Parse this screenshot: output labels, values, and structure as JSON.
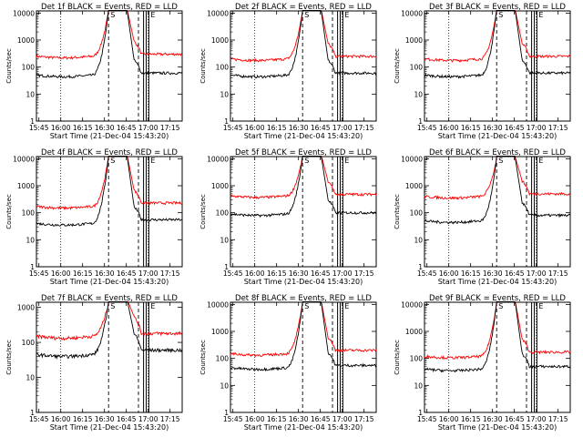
{
  "chart_data": [
    {
      "type": "line",
      "title": "Det 1f BLACK = Events, RED = LLD",
      "xlabel": "Start Time (21-Dec-04 15:43:20)",
      "ylabel": "Counts/sec",
      "x_ticks": [
        "15:45",
        "16:00",
        "16:15",
        "16:30",
        "16:45",
        "17:00",
        "17:15"
      ],
      "y_ticks": [
        "1",
        "10",
        "100",
        "1000",
        "10000"
      ],
      "ylim": [
        1,
        12000
      ],
      "yscale": "log",
      "markers": [
        "S",
        "E"
      ],
      "series": [
        {
          "name": "LLD",
          "color": "#ff0000",
          "baseline": 250,
          "late": 300,
          "peak": 12000
        },
        {
          "name": "Events",
          "color": "#000000",
          "baseline": 50,
          "late": 60,
          "peak": 12000
        }
      ]
    },
    {
      "type": "line",
      "title": "Det 2f BLACK = Events, RED = LLD",
      "xlabel": "Start Time (21-Dec-04 15:43:20)",
      "ylabel": "Counts/sec",
      "x_ticks": [
        "15:45",
        "16:00",
        "16:15",
        "16:30",
        "16:45",
        "17:00",
        "17:15"
      ],
      "y_ticks": [
        "1",
        "10",
        "100",
        "1000",
        "10000"
      ],
      "ylim": [
        1,
        12000
      ],
      "yscale": "log",
      "markers": [
        "S",
        "E"
      ],
      "series": [
        {
          "name": "LLD",
          "color": "#ff0000",
          "baseline": 200,
          "late": 250,
          "peak": 12000
        },
        {
          "name": "Events",
          "color": "#000000",
          "baseline": 50,
          "late": 60,
          "peak": 12000
        }
      ]
    },
    {
      "type": "line",
      "title": "Det 3f BLACK = Events, RED = LLD",
      "xlabel": "Start Time (21-Dec-04 15:43:20)",
      "ylabel": "Counts/sec",
      "x_ticks": [
        "15:45",
        "16:00",
        "16:15",
        "16:30",
        "16:45",
        "17:00",
        "17:15"
      ],
      "y_ticks": [
        "1",
        "10",
        "100",
        "1000",
        "10000"
      ],
      "ylim": [
        1,
        12000
      ],
      "yscale": "log",
      "markers": [
        "S",
        "E"
      ],
      "series": [
        {
          "name": "LLD",
          "color": "#ff0000",
          "baseline": 200,
          "late": 250,
          "peak": 12000
        },
        {
          "name": "Events",
          "color": "#000000",
          "baseline": 50,
          "late": 60,
          "peak": 12000
        }
      ]
    },
    {
      "type": "line",
      "title": "Det 4f BLACK = Events, RED = LLD",
      "xlabel": "Start Time (21-Dec-04 15:43:20)",
      "ylabel": "Counts/sec",
      "x_ticks": [
        "15:45",
        "16:00",
        "16:15",
        "16:30",
        "16:45",
        "17:00",
        "17:15"
      ],
      "y_ticks": [
        "1",
        "10",
        "100",
        "1000",
        "10000"
      ],
      "ylim": [
        1,
        12000
      ],
      "yscale": "log",
      "markers": [
        "S",
        "E"
      ],
      "series": [
        {
          "name": "LLD",
          "color": "#ff0000",
          "baseline": 170,
          "late": 230,
          "peak": 12000
        },
        {
          "name": "Events",
          "color": "#000000",
          "baseline": 40,
          "late": 55,
          "peak": 12000
        }
      ]
    },
    {
      "type": "line",
      "title": "Det 5f BLACK = Events, RED = LLD",
      "xlabel": "Start Time (21-Dec-04 15:43:20)",
      "ylabel": "Counts/sec",
      "x_ticks": [
        "15:45",
        "16:00",
        "16:15",
        "16:30",
        "16:45",
        "17:00",
        "17:15"
      ],
      "y_ticks": [
        "1",
        "10",
        "100",
        "1000",
        "10000"
      ],
      "ylim": [
        1,
        12000
      ],
      "yscale": "log",
      "markers": [
        "S",
        "E"
      ],
      "series": [
        {
          "name": "LLD",
          "color": "#ff0000",
          "baseline": 420,
          "late": 480,
          "peak": 12000
        },
        {
          "name": "Events",
          "color": "#000000",
          "baseline": 90,
          "late": 100,
          "peak": 12000
        }
      ]
    },
    {
      "type": "line",
      "title": "Det 6f BLACK = Events, RED = LLD",
      "xlabel": "Start Time (21-Dec-04 15:43:20)",
      "ylabel": "Counts/sec",
      "x_ticks": [
        "15:45",
        "16:00",
        "16:15",
        "16:30",
        "16:45",
        "17:00",
        "17:15"
      ],
      "y_ticks": [
        "1",
        "10",
        "100",
        "1000",
        "10000"
      ],
      "ylim": [
        1,
        12000
      ],
      "yscale": "log",
      "markers": [
        "S",
        "E"
      ],
      "series": [
        {
          "name": "LLD",
          "color": "#ff0000",
          "baseline": 400,
          "late": 500,
          "peak": 10000
        },
        {
          "name": "Events",
          "color": "#000000",
          "baseline": 50,
          "late": 80,
          "peak": 10000
        }
      ]
    },
    {
      "type": "line",
      "title": "Det 7f BLACK = Events, RED = LLD",
      "xlabel": "Start Time (21-Dec-04 15:43:20)",
      "ylabel": "Counts/sec",
      "x_ticks": [
        "15:45",
        "16:00",
        "16:15",
        "16:30",
        "16:45",
        "17:00",
        "17:15"
      ],
      "y_ticks": [
        "1",
        "10",
        "100",
        "1000"
      ],
      "ylim": [
        1,
        1400
      ],
      "yscale": "log",
      "markers": [
        "S",
        "E"
      ],
      "series": [
        {
          "name": "LLD",
          "color": "#ff0000",
          "baseline": 150,
          "late": 180,
          "peak": 1400
        },
        {
          "name": "Events",
          "color": "#000000",
          "baseline": 45,
          "late": 60,
          "peak": 1400
        }
      ]
    },
    {
      "type": "line",
      "title": "Det 8f BLACK = Events, RED = LLD",
      "xlabel": "Start Time (21-Dec-04 15:43:20)",
      "ylabel": "Counts/sec",
      "x_ticks": [
        "15:45",
        "16:00",
        "16:15",
        "16:30",
        "16:45",
        "17:00",
        "17:15"
      ],
      "y_ticks": [
        "1",
        "10",
        "100",
        "1000",
        "10000"
      ],
      "ylim": [
        1,
        12000
      ],
      "yscale": "log",
      "markers": [
        "S",
        "E"
      ],
      "series": [
        {
          "name": "LLD",
          "color": "#ff0000",
          "baseline": 150,
          "late": 200,
          "peak": 12000
        },
        {
          "name": "Events",
          "color": "#000000",
          "baseline": 45,
          "late": 55,
          "peak": 12000
        }
      ]
    },
    {
      "type": "line",
      "title": "Det 9f BLACK = Events, RED = LLD",
      "xlabel": "Start Time (21-Dec-04 15:43:20)",
      "ylabel": "Counts/sec",
      "x_ticks": [
        "15:45",
        "16:00",
        "16:15",
        "16:30",
        "16:45",
        "17:00",
        "17:15"
      ],
      "y_ticks": [
        "1",
        "10",
        "100",
        "1000",
        "10000"
      ],
      "ylim": [
        1,
        12000
      ],
      "yscale": "log",
      "markers": [
        "S",
        "E"
      ],
      "series": [
        {
          "name": "LLD",
          "color": "#ff0000",
          "baseline": 120,
          "late": 170,
          "peak": 12000
        },
        {
          "name": "Events",
          "color": "#000000",
          "baseline": 40,
          "late": 50,
          "peak": 12000
        }
      ]
    }
  ]
}
